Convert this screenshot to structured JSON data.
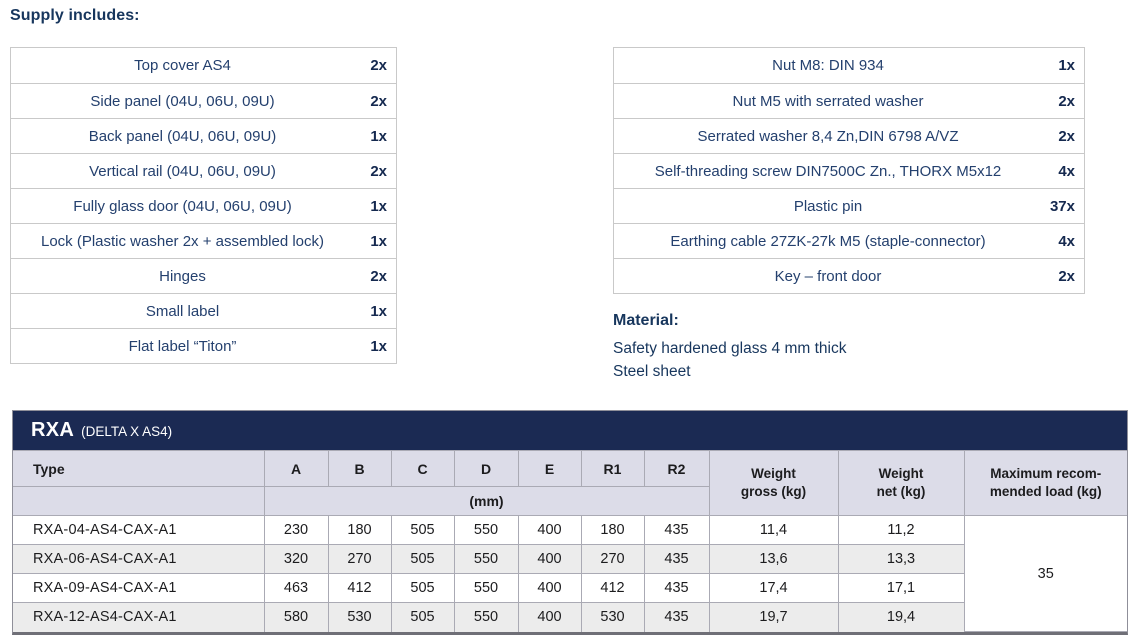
{
  "supply_heading": "Supply includes:",
  "supply_left": {
    "items": [
      {
        "label": "Top cover AS4",
        "qty": "2x"
      },
      {
        "label": "Side panel (04U, 06U, 09U)",
        "qty": "2x"
      },
      {
        "label": "Back panel (04U, 06U, 09U)",
        "qty": "1x"
      },
      {
        "label": "Vertical rail (04U, 06U, 09U)",
        "qty": "2x"
      },
      {
        "label": "Fully glass door (04U, 06U, 09U)",
        "qty": "1x"
      },
      {
        "label": "Lock (Plastic washer 2x + assembled lock)",
        "qty": "1x"
      },
      {
        "label": "Hinges",
        "qty": "2x"
      },
      {
        "label": "Small label",
        "qty": "1x"
      },
      {
        "label": "Flat label “Titon”",
        "qty": "1x"
      }
    ]
  },
  "supply_right": {
    "items": [
      {
        "label": "Nut M8: DIN 934",
        "qty": "1x"
      },
      {
        "label": "Nut M5 with serrated washer",
        "qty": "2x"
      },
      {
        "label": "Serrated washer 8,4 Zn,DIN 6798 A/VZ",
        "qty": "2x"
      },
      {
        "label": "Self-threading screw DIN7500C Zn., THORX M5x12",
        "qty": "4x"
      },
      {
        "label": "Plastic pin",
        "qty": "37x"
      },
      {
        "label": "Earthing cable 27ZK-27k M5 (staple-connector)",
        "qty": "4x"
      },
      {
        "label": "Key – front door",
        "qty": "2x"
      }
    ]
  },
  "material": {
    "heading": "Material:",
    "lines": [
      "Safety hardened glass 4 mm thick",
      "Steel sheet"
    ]
  },
  "spec": {
    "title": "RXA",
    "subtitle": "(DELTA X AS4)",
    "columns": [
      "Type",
      "A",
      "B",
      "C",
      "D",
      "E",
      "R1",
      "R2"
    ],
    "unit_row": "(mm)",
    "weight_gross_header": "Weight\ngross (kg)",
    "weight_net_header": "Weight\nnet (kg)",
    "max_load_header": "Maximum recom-\nmended load (kg)",
    "rows": [
      {
        "type": "RXA-04-AS4-CAX-A1",
        "values": [
          "230",
          "180",
          "505",
          "550",
          "400",
          "180",
          "435"
        ],
        "weight_gross": "11,4",
        "weight_net": "11,2"
      },
      {
        "type": "RXA-06-AS4-CAX-A1",
        "values": [
          "320",
          "270",
          "505",
          "550",
          "400",
          "270",
          "435"
        ],
        "weight_gross": "13,6",
        "weight_net": "13,3"
      },
      {
        "type": "RXA-09-AS4-CAX-A1",
        "values": [
          "463",
          "412",
          "505",
          "550",
          "400",
          "412",
          "435"
        ],
        "weight_gross": "17,4",
        "weight_net": "17,1"
      },
      {
        "type": "RXA-12-AS4-CAX-A1",
        "values": [
          "580",
          "530",
          "505",
          "550",
          "400",
          "530",
          "435"
        ],
        "weight_gross": "19,7",
        "weight_net": "19,4"
      }
    ],
    "max_load": "35"
  },
  "colors": {
    "accent_navy": "#1b2a53",
    "text_navy": "#24406e",
    "qty_navy": "#15294f",
    "header_lavender": "#dcdce8",
    "alt_row_gray": "#ececec",
    "border_gray": "#c9c9c9"
  }
}
